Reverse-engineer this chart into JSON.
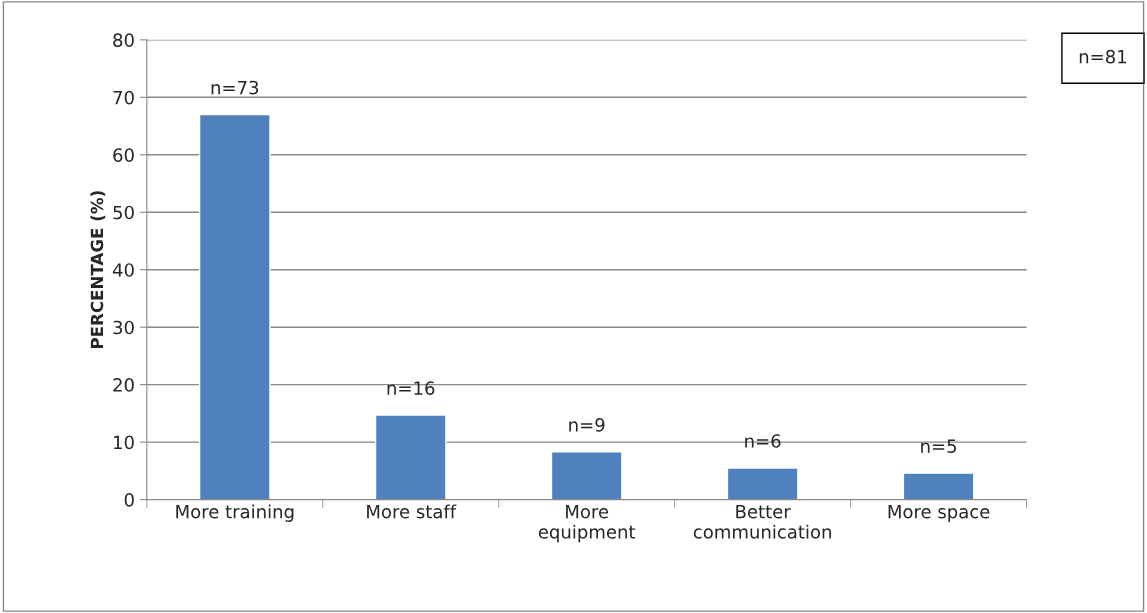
{
  "chart_data": {
    "type": "bar",
    "ylabel": "PERCENTAGE (%)",
    "categories": [
      "More training",
      "More staff",
      "More\nequipment",
      "Better\ncommunication",
      "More space"
    ],
    "values": [
      67,
      14.7,
      8.3,
      5.5,
      4.6
    ],
    "color": "#4f81bd",
    "ylim": [
      0,
      80
    ],
    "yticks": [
      0,
      10,
      20,
      30,
      40,
      50,
      60,
      70,
      80
    ],
    "grid": "y",
    "annotations": [
      "n=81",
      {
        "text": "n=73",
        "x": "More training",
        "y": 67
      },
      {
        "text": "n=16",
        "x": "More staff",
        "y": 14.7
      },
      {
        "text": "n=9",
        "x": "More\nequipment",
        "y": 8.3
      },
      {
        "text": "n=6",
        "x": "Better\ncommunication",
        "y": 5.5
      },
      {
        "text": "n=5",
        "x": "More space",
        "y": 4.6
      }
    ]
  }
}
